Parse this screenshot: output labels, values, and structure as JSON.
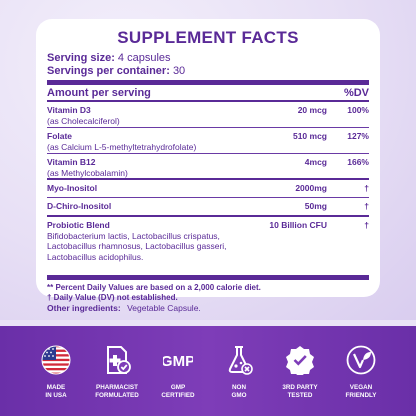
{
  "title": "SUPPLEMENT FACTS",
  "serving": {
    "size_label": "Serving size:",
    "size_value": "4 capsules",
    "per_container_label": "Servings per container:",
    "per_container_value": "30"
  },
  "header": {
    "amount": "Amount per serving",
    "dv": "%DV"
  },
  "rows": [
    {
      "name": "Vitamin D3",
      "sub": "(as Cholecalciferol)",
      "amount": "20 mcg",
      "dv": "100%"
    },
    {
      "name": "Folate",
      "sub": "(as Calcium L-5-methyltetrahydrofolate)",
      "amount": "510 mcg",
      "dv": "127%"
    },
    {
      "name": "Vitamin B12",
      "sub": "(as Methylcobalamin)",
      "amount": "4mcg",
      "dv": "166%"
    },
    {
      "name": "Myo-Inositol",
      "sub": "",
      "amount": "2000mg",
      "dv": "†"
    },
    {
      "name": "D-Chiro-Inositol",
      "sub": "",
      "amount": "50mg",
      "dv": "†"
    },
    {
      "name": "Probiotic Blend",
      "sub": "Bifidobacterium lactis, Lactobacillus crispatus, Lactobacillus rhamnosus, Lactobacillus gasseri, Lactobacillus acidophilus.",
      "amount": "10 Billion CFU",
      "dv": "†"
    }
  ],
  "footnotes": {
    "percent": "** Percent Daily Values are based on a 2,000 calorie diet.",
    "dagger": "† Daily Value (DV) not established."
  },
  "other_ingredients": {
    "label": "Other ingredients:",
    "value": "Vegetable Capsule."
  },
  "badges": [
    {
      "icon": "us-flag-icon",
      "line1": "MADE",
      "line2": "IN USA"
    },
    {
      "icon": "pharmacist-icon",
      "line1": "PHARMACIST",
      "line2": "FORMULATED"
    },
    {
      "icon": "gmp-icon",
      "icon_text": "GMP",
      "line1": "GMP",
      "line2": "CERTIFIED"
    },
    {
      "icon": "non-gmo-icon",
      "line1": "NON",
      "line2": "GMO"
    },
    {
      "icon": "third-party-tested-icon",
      "line1": "3RD PARTY",
      "line2": "TESTED"
    },
    {
      "icon": "vegan-icon",
      "line1": "VEGAN",
      "line2": "FRIENDLY"
    }
  ],
  "colors": {
    "brand": "#5a2a97",
    "band": "#7e3db8",
    "background": "#e9e2f6"
  }
}
